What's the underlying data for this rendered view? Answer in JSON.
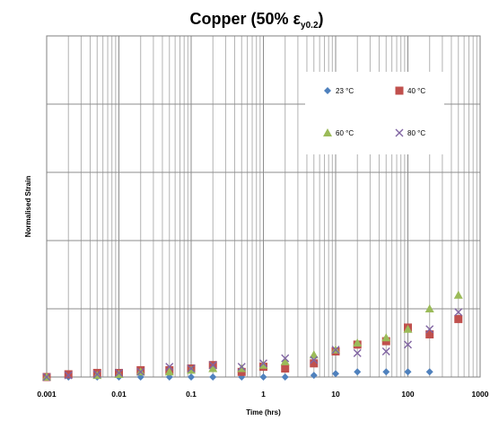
{
  "chart_data": {
    "type": "scatter",
    "title": "Copper (50% ε",
    "title_sub": "y0.2",
    "title_end": ")",
    "xlabel": "Time (hrs)",
    "ylabel": "Normalised Strain",
    "x_scale": "log",
    "xlim": [
      0.001,
      1000
    ],
    "ylim": [
      0,
      1
    ],
    "grid": true,
    "legend_position": "top-right",
    "x_ticks": [
      {
        "value": 0.001,
        "label": "0.001"
      },
      {
        "value": 0.01,
        "label": "0.01"
      },
      {
        "value": 0.1,
        "label": "0.1"
      },
      {
        "value": 1,
        "label": "1"
      },
      {
        "value": 10,
        "label": "10"
      },
      {
        "value": 100,
        "label": "100"
      },
      {
        "value": 1000,
        "label": "1000"
      }
    ],
    "y_gridlines": [
      0,
      0.2,
      0.4,
      0.6,
      0.8,
      1.0
    ],
    "series": [
      {
        "name": "23 °C",
        "marker": "diamond",
        "color": "#4f81bd",
        "points": [
          [
            0.001,
            0
          ],
          [
            0.002,
            0
          ],
          [
            0.005,
            0
          ],
          [
            0.01,
            0
          ],
          [
            0.02,
            0
          ],
          [
            0.05,
            0
          ],
          [
            0.1,
            0
          ],
          [
            0.2,
            0
          ],
          [
            0.5,
            0
          ],
          [
            1,
            0
          ],
          [
            2,
            0
          ],
          [
            5,
            0.005
          ],
          [
            10,
            0.01
          ],
          [
            20,
            0.015
          ],
          [
            50,
            0.015
          ],
          [
            100,
            0.015
          ],
          [
            200,
            0.015
          ]
        ]
      },
      {
        "name": "40 °C",
        "marker": "square",
        "color": "#c0504d",
        "points": [
          [
            0.001,
            0
          ],
          [
            0.002,
            0.008
          ],
          [
            0.005,
            0.012
          ],
          [
            0.01,
            0.012
          ],
          [
            0.02,
            0.02
          ],
          [
            0.05,
            0.02
          ],
          [
            0.1,
            0.025
          ],
          [
            0.2,
            0.035
          ],
          [
            0.5,
            0.015
          ],
          [
            1,
            0.03
          ],
          [
            2,
            0.025
          ],
          [
            5,
            0.04
          ],
          [
            10,
            0.075
          ],
          [
            20,
            0.095
          ],
          [
            50,
            0.105
          ],
          [
            100,
            0.145
          ],
          [
            200,
            0.125
          ],
          [
            500,
            0.17
          ]
        ]
      },
      {
        "name": "60 °C",
        "marker": "triangle",
        "color": "#9bbb59",
        "points": [
          [
            0.001,
            0
          ],
          [
            0.005,
            0.005
          ],
          [
            0.01,
            0.008
          ],
          [
            0.02,
            0.015
          ],
          [
            0.05,
            0.015
          ],
          [
            0.1,
            0.02
          ],
          [
            0.2,
            0.025
          ],
          [
            0.5,
            0.025
          ],
          [
            1,
            0.035
          ],
          [
            2,
            0.045
          ],
          [
            5,
            0.065
          ],
          [
            10,
            0.08
          ],
          [
            20,
            0.1
          ],
          [
            50,
            0.115
          ],
          [
            100,
            0.14
          ],
          [
            200,
            0.2
          ],
          [
            500,
            0.24
          ]
        ]
      },
      {
        "name": "80 °C",
        "marker": "x",
        "color": "#8064a2",
        "points": [
          [
            0.001,
            0
          ],
          [
            0.002,
            0.005
          ],
          [
            0.005,
            0.008
          ],
          [
            0.01,
            0.012
          ],
          [
            0.02,
            0.015
          ],
          [
            0.05,
            0.03
          ],
          [
            0.1,
            0.025
          ],
          [
            0.2,
            0.035
          ],
          [
            0.5,
            0.03
          ],
          [
            1,
            0.04
          ],
          [
            2,
            0.055
          ],
          [
            5,
            0.05
          ],
          [
            10,
            0.08
          ],
          [
            20,
            0.07
          ],
          [
            50,
            0.075
          ],
          [
            100,
            0.095
          ],
          [
            200,
            0.14
          ],
          [
            500,
            0.19
          ]
        ]
      }
    ]
  }
}
